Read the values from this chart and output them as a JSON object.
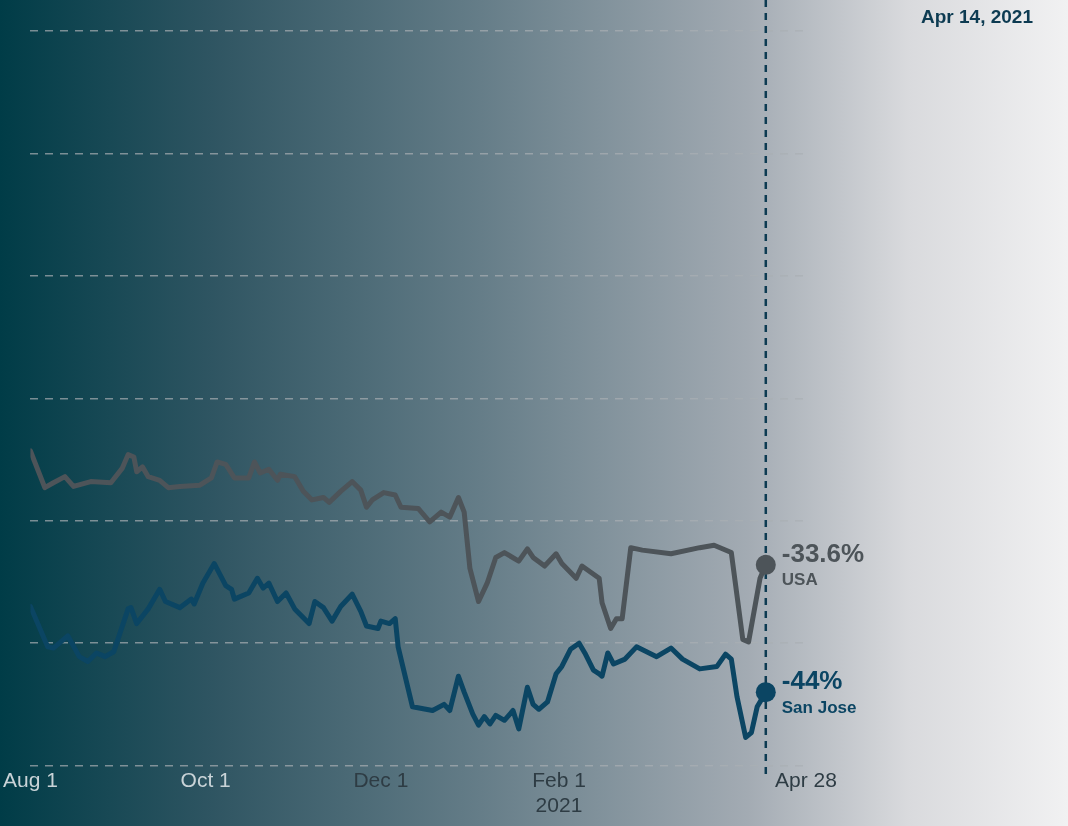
{
  "chart_data": {
    "type": "line",
    "grid": "y",
    "tick_labels": "x",
    "line_style": "solid",
    "ylim": [
      -50,
      10
    ],
    "yticks": [
      {
        "value": -50,
        "label": null
      },
      {
        "value": -40,
        "label": null
      },
      {
        "value": -30,
        "label": null
      },
      {
        "value": -20,
        "label": null
      },
      {
        "value": -10,
        "label": null
      },
      {
        "value": 0,
        "label": null
      },
      {
        "value": 10,
        "label": null
      }
    ],
    "xlim": [
      "2020-08-01",
      "2021-04-28"
    ],
    "xticks": [
      {
        "value": "2020-08-01",
        "label": "Aug 1"
      },
      {
        "value": "2020-10-01",
        "label": "Oct 1"
      },
      {
        "value": "2020-12-01",
        "label": "Dec 1"
      },
      {
        "value": "2021-02-01",
        "label": "Feb 1\n2021"
      },
      {
        "value": "2021-04-28",
        "label": "Apr 28"
      }
    ],
    "ref_lines": [
      {
        "axis": "x",
        "value": "2021-04-14",
        "label": "Apr 14, 2021",
        "color": "#0d3b52",
        "line_style": "dashed"
      }
    ],
    "series": [
      {
        "name": "USA",
        "color": "#4d5459",
        "x": [
          "2020-08-01",
          "2020-08-06",
          "2020-08-09",
          "2020-08-13",
          "2020-08-16",
          "2020-08-22",
          "2020-08-29",
          "2020-09-02",
          "2020-09-04",
          "2020-09-06",
          "2020-09-07",
          "2020-09-09",
          "2020-09-11",
          "2020-09-15",
          "2020-09-18",
          "2020-09-22",
          "2020-09-29",
          "2020-10-03",
          "2020-10-05",
          "2020-10-08",
          "2020-10-11",
          "2020-10-16",
          "2020-10-18",
          "2020-10-20",
          "2020-10-23",
          "2020-10-26",
          "2020-10-27",
          "2020-11-01",
          "2020-11-04",
          "2020-11-07",
          "2020-11-11",
          "2020-11-13",
          "2020-11-17",
          "2020-11-21",
          "2020-11-24",
          "2020-11-26",
          "2020-11-28",
          "2020-12-02",
          "2020-12-06",
          "2020-12-08",
          "2020-12-14",
          "2020-12-18",
          "2020-12-22",
          "2020-12-25",
          "2020-12-28",
          "2020-12-30",
          "2021-01-01",
          "2021-01-04",
          "2021-01-07",
          "2021-01-10",
          "2021-01-13",
          "2021-01-18",
          "2021-01-21",
          "2021-01-23",
          "2021-01-27",
          "2021-01-31",
          "2021-02-02",
          "2021-02-07",
          "2021-02-09",
          "2021-02-15",
          "2021-02-16",
          "2021-02-19",
          "2021-02-21",
          "2021-02-23",
          "2021-02-26",
          "2021-03-02",
          "2021-03-12",
          "2021-03-22",
          "2021-03-27",
          "2021-04-02",
          "2021-04-06",
          "2021-04-08",
          "2021-04-12",
          "2021-04-14"
        ],
        "values": [
          -24.3,
          -27.3,
          -26.9,
          -26.4,
          -27.2,
          -26.8,
          -26.9,
          -25.7,
          -24.6,
          -24.8,
          -26.0,
          -25.6,
          -26.4,
          -26.7,
          -27.3,
          -27.2,
          -27.1,
          -26.5,
          -25.2,
          -25.4,
          -26.5,
          -26.5,
          -25.2,
          -26.1,
          -25.8,
          -26.7,
          -26.2,
          -26.4,
          -27.6,
          -28.3,
          -28.1,
          -28.5,
          -27.6,
          -26.8,
          -27.5,
          -28.9,
          -28.3,
          -27.7,
          -27.9,
          -28.9,
          -29.0,
          -30.1,
          -29.3,
          -29.7,
          -28.1,
          -29.3,
          -33.9,
          -36.6,
          -35.1,
          -33.0,
          -32.6,
          -33.3,
          -32.3,
          -33.0,
          -33.7,
          -32.7,
          -33.5,
          -34.7,
          -33.7,
          -34.7,
          -36.7,
          -38.8,
          -38.0,
          -38.0,
          -32.2,
          -32.4,
          -32.7,
          -32.2,
          -32.0,
          -32.6,
          -39.7,
          -39.9,
          -34.7,
          -33.6
        ],
        "value_labels": [
          null,
          null,
          null,
          null,
          null,
          null,
          null,
          null,
          null,
          null,
          null,
          null,
          null,
          null,
          null,
          null,
          null,
          null,
          null,
          null,
          null,
          null,
          null,
          null,
          null,
          null,
          null,
          null,
          null,
          null,
          null,
          null,
          null,
          null,
          null,
          null,
          null,
          null,
          null,
          null,
          null,
          null,
          null,
          null,
          null,
          null,
          null,
          null,
          null,
          null,
          null,
          null,
          null,
          null,
          null,
          null,
          null,
          null,
          null,
          null,
          null,
          null,
          null,
          null,
          null,
          null,
          null,
          null,
          null,
          null,
          null,
          null,
          null,
          "-33.6%"
        ]
      },
      {
        "name": "San Jose",
        "color": "#0b4563",
        "x": [
          "2020-08-01",
          "2020-08-07",
          "2020-08-09",
          "2020-08-14",
          "2020-08-18",
          "2020-08-21",
          "2020-08-24",
          "2020-08-27",
          "2020-08-30",
          "2020-09-02",
          "2020-09-04",
          "2020-09-05",
          "2020-09-07",
          "2020-09-11",
          "2020-09-15",
          "2020-09-17",
          "2020-09-22",
          "2020-09-26",
          "2020-09-27",
          "2020-09-30",
          "2020-10-04",
          "2020-10-08",
          "2020-10-10",
          "2020-10-11",
          "2020-10-16",
          "2020-10-19",
          "2020-10-21",
          "2020-10-23",
          "2020-10-26",
          "2020-10-29",
          "2020-11-01",
          "2020-11-06",
          "2020-11-08",
          "2020-11-11",
          "2020-11-14",
          "2020-11-17",
          "2020-11-21",
          "2020-11-24",
          "2020-11-26",
          "2020-11-30",
          "2020-12-01",
          "2020-12-04",
          "2020-12-06",
          "2020-12-07",
          "2020-12-12",
          "2020-12-19",
          "2020-12-23",
          "2020-12-25",
          "2020-12-28",
          "2020-12-30",
          "2021-01-02",
          "2021-01-04",
          "2021-01-06",
          "2021-01-08",
          "2021-01-10",
          "2021-01-13",
          "2021-01-16",
          "2021-01-18",
          "2021-01-21",
          "2021-01-23",
          "2021-01-25",
          "2021-01-28",
          "2021-01-31",
          "2021-02-02",
          "2021-02-05",
          "2021-02-08",
          "2021-02-10",
          "2021-02-13",
          "2021-02-15",
          "2021-02-16",
          "2021-02-18",
          "2021-02-20",
          "2021-02-24",
          "2021-02-28",
          "2021-03-07",
          "2021-03-12",
          "2021-03-16",
          "2021-03-22",
          "2021-03-28",
          "2021-03-31",
          "2021-04-02",
          "2021-04-04",
          "2021-04-07",
          "2021-04-09",
          "2021-04-11",
          "2021-04-14"
        ],
        "values": [
          -37.0,
          -40.3,
          -40.4,
          -39.4,
          -41.1,
          -41.5,
          -40.8,
          -41.1,
          -40.7,
          -38.6,
          -37.2,
          -37.1,
          -38.4,
          -37.2,
          -35.6,
          -36.6,
          -37.1,
          -36.4,
          -36.8,
          -35.1,
          -33.5,
          -35.3,
          -35.6,
          -36.4,
          -35.9,
          -34.7,
          -35.5,
          -35.1,
          -36.6,
          -35.9,
          -37.2,
          -38.4,
          -36.6,
          -37.1,
          -38.2,
          -37.0,
          -36.0,
          -37.4,
          -38.6,
          -38.8,
          -38.2,
          -38.4,
          -38.0,
          -40.3,
          -45.2,
          -45.5,
          -45.0,
          -45.5,
          -42.7,
          -44.0,
          -45.8,
          -46.7,
          -46.0,
          -46.6,
          -45.9,
          -46.3,
          -45.5,
          -47.0,
          -43.6,
          -45.0,
          -45.4,
          -44.8,
          -42.5,
          -41.9,
          -40.5,
          -40.0,
          -40.8,
          -42.2,
          -42.5,
          -42.7,
          -40.8,
          -41.7,
          -41.3,
          -40.3,
          -41.1,
          -40.4,
          -41.3,
          -42.1,
          -41.9,
          -40.9,
          -41.3,
          -44.4,
          -47.7,
          -47.3,
          -45.2,
          -44.0
        ],
        "value_labels": [
          null,
          null,
          null,
          null,
          null,
          null,
          null,
          null,
          null,
          null,
          null,
          null,
          null,
          null,
          null,
          null,
          null,
          null,
          null,
          null,
          null,
          null,
          null,
          null,
          null,
          null,
          null,
          null,
          null,
          null,
          null,
          null,
          null,
          null,
          null,
          null,
          null,
          null,
          null,
          null,
          null,
          null,
          null,
          null,
          null,
          null,
          null,
          null,
          null,
          null,
          null,
          null,
          null,
          null,
          null,
          null,
          null,
          null,
          null,
          null,
          null,
          null,
          null,
          null,
          null,
          null,
          null,
          null,
          null,
          null,
          null,
          null,
          null,
          null,
          null,
          null,
          null,
          null,
          null,
          null,
          null,
          null,
          null,
          null,
          null,
          "-44%"
        ]
      }
    ]
  }
}
